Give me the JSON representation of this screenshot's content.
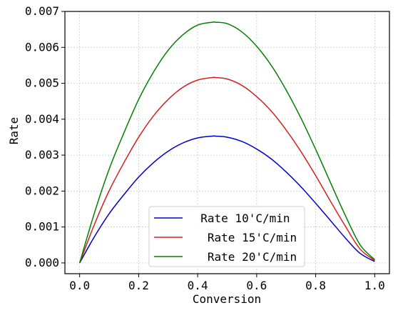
{
  "chart_data": {
    "type": "line",
    "title": "",
    "xlabel": "Conversion",
    "ylabel": "Rate",
    "xlim": [
      -0.05,
      1.05
    ],
    "ylim": [
      -0.0003,
      0.007
    ],
    "xticks": [
      0.0,
      0.2,
      0.4,
      0.6,
      0.8,
      1.0
    ],
    "xtick_labels": [
      "0.0",
      "0.2",
      "0.4",
      "0.6",
      "0.8",
      "1.0"
    ],
    "yticks": [
      0.0,
      0.001,
      0.002,
      0.003,
      0.004,
      0.005,
      0.006,
      0.007
    ],
    "ytick_labels": [
      "0.000",
      "0.001",
      "0.002",
      "0.003",
      "0.004",
      "0.005",
      "0.006",
      "0.007"
    ],
    "grid": true,
    "legend_position": "bottom-center",
    "x": [
      0.0,
      0.05,
      0.1,
      0.15,
      0.2,
      0.25,
      0.3,
      0.35,
      0.4,
      0.45,
      0.46,
      0.5,
      0.55,
      0.6,
      0.65,
      0.7,
      0.75,
      0.8,
      0.85,
      0.9,
      0.95,
      1.0
    ],
    "series": [
      {
        "name": "Rate 10'C/min",
        "legend_label": "  Rate 10'C/min",
        "color": "#0000cc",
        "values": [
          0.0,
          0.00073,
          0.00137,
          0.0019,
          0.00239,
          0.00279,
          0.00311,
          0.00334,
          0.00348,
          0.00353,
          0.00353,
          0.0035,
          0.00338,
          0.00317,
          0.00289,
          0.00253,
          0.00212,
          0.00166,
          0.00118,
          0.0007,
          0.00027,
          4e-05
        ]
      },
      {
        "name": "Rate 15'C/min",
        "legend_label": "   Rate 15'C/min",
        "color": "#d62020",
        "values": [
          0.0,
          0.00107,
          0.00201,
          0.00279,
          0.0035,
          0.00409,
          0.00455,
          0.00489,
          0.00509,
          0.00516,
          0.00516,
          0.00512,
          0.00494,
          0.00463,
          0.00422,
          0.0037,
          0.0031,
          0.00243,
          0.00172,
          0.00103,
          0.00039,
          7e-05
        ]
      },
      {
        "name": "Rate 20'C/min",
        "legend_label": "   Rate 20'C/min",
        "color": "#008000",
        "values": [
          0.0,
          0.00139,
          0.00261,
          0.00362,
          0.00455,
          0.00531,
          0.00592,
          0.00635,
          0.00662,
          0.0067,
          0.0067,
          0.00666,
          0.00643,
          0.00603,
          0.00549,
          0.00481,
          0.00403,
          0.00316,
          0.00224,
          0.00133,
          0.00051,
          9e-05
        ]
      }
    ]
  }
}
